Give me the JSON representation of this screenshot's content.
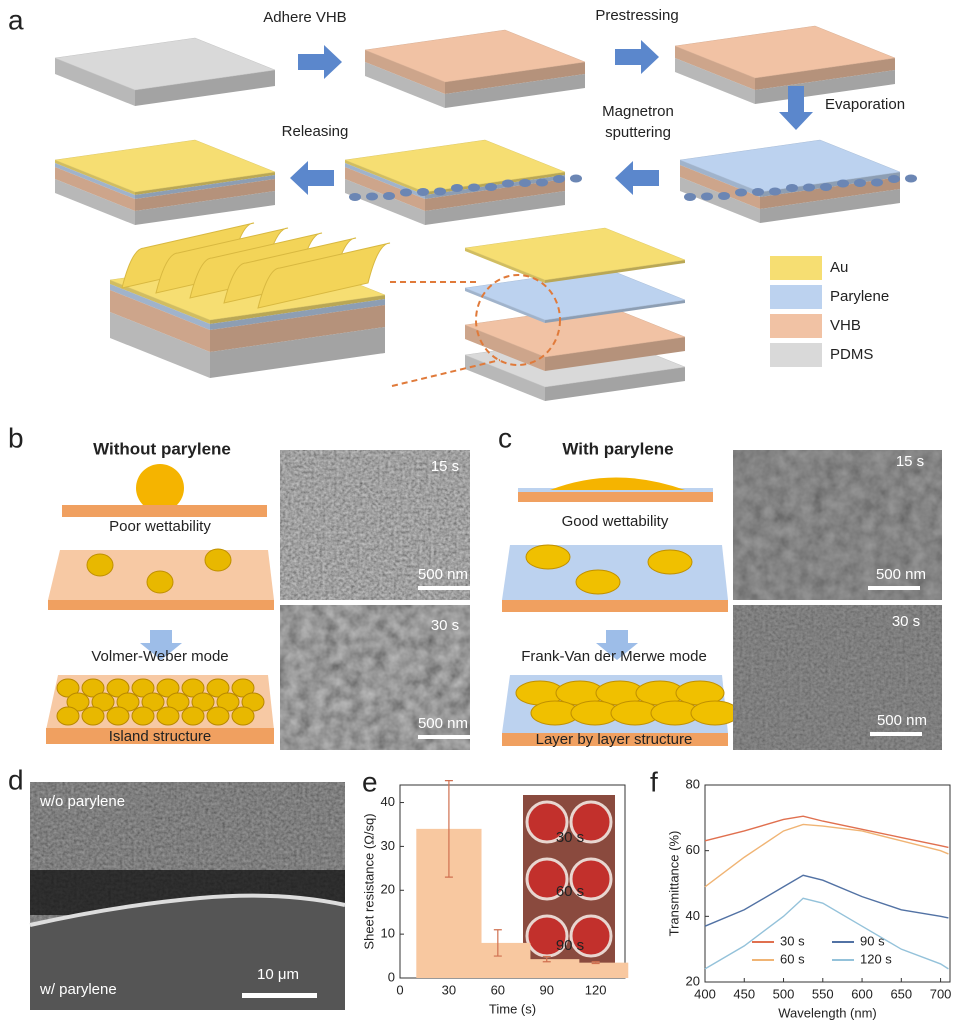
{
  "panel_a": {
    "label": "a",
    "steps": {
      "adhere": "Adhere VHB",
      "prestressing": "Prestressing",
      "evaporation": "Evaporation",
      "sputtering": [
        "Magnetron",
        "sputtering"
      ],
      "releasing": "Releasing"
    },
    "legend": [
      "Au",
      "Parylene",
      "VHB",
      "PDMS"
    ]
  },
  "panel_b": {
    "label": "b",
    "title": "Without parylene",
    "wettability": "Poor wettability",
    "mode": "Volmer-Weber mode",
    "structure": "Island structure",
    "images": [
      {
        "time": "15 s",
        "scale": "500 nm"
      },
      {
        "time": "30 s",
        "scale": "500 nm"
      }
    ]
  },
  "panel_c": {
    "label": "c",
    "title": "With parylene",
    "wettability": "Good wettability",
    "mode": "Frank-Van der Merwe mode",
    "structure": "Layer by layer  structure",
    "images": [
      {
        "time": "15 s",
        "scale": "500 nm"
      },
      {
        "time": "30 s",
        "scale": "500 nm"
      }
    ]
  },
  "panel_d": {
    "label": "d",
    "top": "w/o parylene",
    "bottom": "w/ parylene",
    "scale": "10 μm"
  },
  "chart_data": [
    {
      "type": "bar",
      "panel": "e",
      "x_label": "Time (s)",
      "y_label": "Sheet resistance (Ω/sq)",
      "x": [
        30,
        60,
        90,
        120
      ],
      "values": [
        34,
        8,
        4.3,
        3.5
      ],
      "errors": [
        11,
        3,
        0.6,
        0.2
      ],
      "color": "#f8c8a0",
      "error_color": "#d07050",
      "xlim": [
        0,
        138
      ],
      "xticks": [
        0,
        30,
        60,
        90,
        120
      ],
      "ylim": [
        0,
        44
      ],
      "yticks": [
        0,
        10,
        20,
        30,
        40
      ],
      "annotations": [
        "30 s",
        "60 s",
        "90 s"
      ]
    },
    {
      "type": "line",
      "panel": "f",
      "x_label": "Wavelength (nm)",
      "y_label": "Transmittance (%)",
      "x": [
        400,
        450,
        500,
        525,
        550,
        600,
        650,
        700,
        710
      ],
      "series": [
        {
          "name": "30 s",
          "color": "#e0704f",
          "values": [
            63,
            66,
            69.5,
            70.5,
            69,
            66.5,
            64,
            61.5,
            61
          ]
        },
        {
          "name": "60 s",
          "color": "#f0b474",
          "values": [
            49,
            58,
            66,
            68,
            67.5,
            66,
            63,
            60,
            59
          ]
        },
        {
          "name": "90 s",
          "color": "#5272a4",
          "values": [
            37,
            42,
            49,
            52.5,
            51,
            46,
            42,
            40,
            39.5
          ]
        },
        {
          "name": "120 s",
          "color": "#94c2da",
          "values": [
            24,
            31,
            40,
            45.5,
            44,
            37,
            30,
            25.5,
            24
          ]
        }
      ],
      "xlim": [
        400,
        712
      ],
      "xticks": [
        400,
        450,
        500,
        550,
        600,
        650,
        700
      ],
      "ylim": [
        20,
        80
      ],
      "yticks": [
        20,
        40,
        60,
        80
      ]
    }
  ]
}
